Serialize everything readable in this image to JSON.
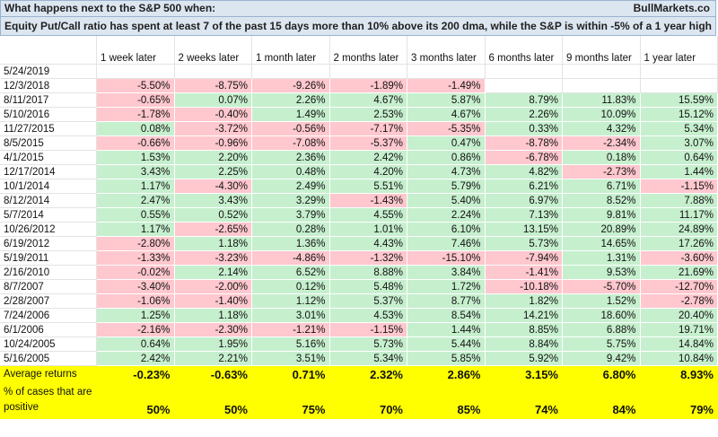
{
  "header": {
    "title": "What happens next to the S&P 500 when:",
    "source": "BullMarkets.co",
    "subtitle": "Equity Put/Call ratio has spent at least 7 of the past 15 days more than 10% above its 200 dma, while the S&P is within -5% of a 1 year high"
  },
  "table": {
    "columns": [
      "1 week later",
      "2 weeks later",
      "1 month later",
      "2 months later",
      "3 months later",
      "6 months later",
      "9 months later",
      "1 year later"
    ],
    "rows": [
      {
        "date": "5/24/2019",
        "values": []
      },
      {
        "date": "12/3/2018",
        "values": [
          "-5.50%",
          "-8.75%",
          "-9.26%",
          "-1.89%",
          "-1.49%"
        ]
      },
      {
        "date": "8/11/2017",
        "values": [
          "-0.65%",
          "0.07%",
          "2.26%",
          "4.67%",
          "5.87%",
          "8.79%",
          "11.83%",
          "15.59%"
        ]
      },
      {
        "date": "5/10/2016",
        "values": [
          "-1.78%",
          "-0.40%",
          "1.49%",
          "2.53%",
          "4.67%",
          "2.26%",
          "10.09%",
          "15.12%"
        ]
      },
      {
        "date": "11/27/2015",
        "values": [
          "0.08%",
          "-3.72%",
          "-0.56%",
          "-7.17%",
          "-5.35%",
          "0.33%",
          "4.32%",
          "5.34%"
        ]
      },
      {
        "date": "8/5/2015",
        "values": [
          "-0.66%",
          "-0.96%",
          "-7.08%",
          "-5.37%",
          "0.47%",
          "-8.78%",
          "-2.34%",
          "3.07%"
        ]
      },
      {
        "date": "4/1/2015",
        "values": [
          "1.53%",
          "2.20%",
          "2.36%",
          "2.42%",
          "0.86%",
          "-6.78%",
          "0.18%",
          "0.64%"
        ]
      },
      {
        "date": "12/17/2014",
        "values": [
          "3.43%",
          "2.25%",
          "0.48%",
          "4.20%",
          "4.73%",
          "4.82%",
          "-2.73%",
          "1.44%"
        ]
      },
      {
        "date": "10/1/2014",
        "values": [
          "1.17%",
          "-4.30%",
          "2.49%",
          "5.51%",
          "5.79%",
          "6.21%",
          "6.71%",
          "-1.15%"
        ]
      },
      {
        "date": "8/12/2014",
        "values": [
          "2.47%",
          "3.43%",
          "3.29%",
          "-1.43%",
          "5.40%",
          "6.97%",
          "8.52%",
          "7.88%"
        ]
      },
      {
        "date": "5/7/2014",
        "values": [
          "0.55%",
          "0.52%",
          "3.79%",
          "4.55%",
          "2.24%",
          "7.13%",
          "9.81%",
          "11.17%"
        ]
      },
      {
        "date": "10/26/2012",
        "values": [
          "1.17%",
          "-2.65%",
          "0.28%",
          "1.01%",
          "6.10%",
          "13.15%",
          "20.89%",
          "24.89%"
        ]
      },
      {
        "date": "6/19/2012",
        "values": [
          "-2.80%",
          "1.18%",
          "1.36%",
          "4.43%",
          "7.46%",
          "5.73%",
          "14.65%",
          "17.26%"
        ]
      },
      {
        "date": "5/19/2011",
        "values": [
          "-1.33%",
          "-3.23%",
          "-4.86%",
          "-1.32%",
          "-15.10%",
          "-7.94%",
          "1.31%",
          "-3.60%"
        ]
      },
      {
        "date": "2/16/2010",
        "values": [
          "-0.02%",
          "2.14%",
          "6.52%",
          "8.88%",
          "3.84%",
          "-1.41%",
          "9.53%",
          "21.69%"
        ]
      },
      {
        "date": "8/7/2007",
        "values": [
          "-3.40%",
          "-2.00%",
          "0.12%",
          "5.48%",
          "1.72%",
          "-10.18%",
          "-5.70%",
          "-12.70%"
        ]
      },
      {
        "date": "2/28/2007",
        "values": [
          "-1.06%",
          "-1.40%",
          "1.12%",
          "5.37%",
          "8.77%",
          "1.82%",
          "1.52%",
          "-2.78%"
        ]
      },
      {
        "date": "7/24/2006",
        "values": [
          "1.25%",
          "1.18%",
          "3.01%",
          "4.53%",
          "8.54%",
          "14.21%",
          "18.60%",
          "20.40%"
        ]
      },
      {
        "date": "6/1/2006",
        "values": [
          "-2.16%",
          "-2.30%",
          "-1.21%",
          "-1.15%",
          "1.44%",
          "8.85%",
          "6.88%",
          "19.71%"
        ]
      },
      {
        "date": "10/24/2005",
        "values": [
          "0.64%",
          "1.95%",
          "5.16%",
          "5.73%",
          "5.44%",
          "8.84%",
          "5.75%",
          "14.84%"
        ]
      },
      {
        "date": "5/16/2005",
        "values": [
          "2.42%",
          "2.21%",
          "3.51%",
          "5.34%",
          "5.85%",
          "5.92%",
          "9.42%",
          "10.84%"
        ]
      }
    ],
    "summary": [
      {
        "label": "Average returns",
        "values": [
          "-0.23%",
          "-0.63%",
          "0.71%",
          "2.32%",
          "2.86%",
          "3.15%",
          "6.80%",
          "8.93%"
        ]
      },
      {
        "label": "% of cases that are positive",
        "values": [
          "50%",
          "50%",
          "75%",
          "70%",
          "85%",
          "74%",
          "84%",
          "79%"
        ]
      }
    ]
  }
}
